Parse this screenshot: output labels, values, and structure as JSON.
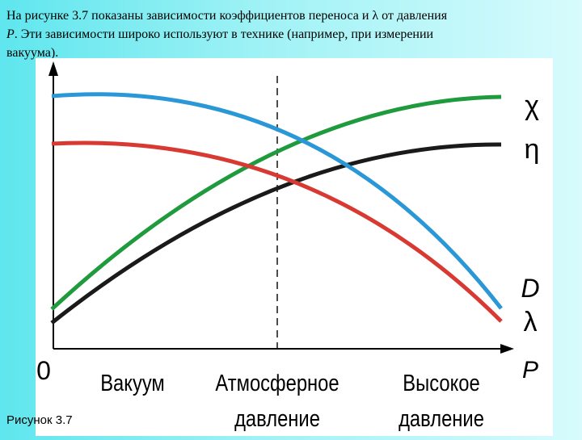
{
  "text": {
    "line1": "На рисунке 3.7 показаны зависимости коэффициентов переноса и λ от давления",
    "line2_var": "P",
    "line2_rest": ". Эти зависимости широко используют в технике (например, при измерении",
    "line3": "вакуума)."
  },
  "caption": "Рисунок 3.7",
  "diagram": {
    "origin": "0",
    "x_axis_label": "P",
    "regions": [
      {
        "line1": "Вакуум",
        "line2": ""
      },
      {
        "line1": "Атмосферное",
        "line2": "давление"
      },
      {
        "line1": "Высокое",
        "line2": "давление"
      }
    ],
    "curves": [
      {
        "symbol": "χ",
        "color": "#1f9a3c"
      },
      {
        "symbol": "η",
        "color": "#1a1a1a"
      },
      {
        "symbol": "D",
        "color": "#2a97d6"
      },
      {
        "symbol": "λ",
        "color": "#d83a33"
      }
    ]
  }
}
